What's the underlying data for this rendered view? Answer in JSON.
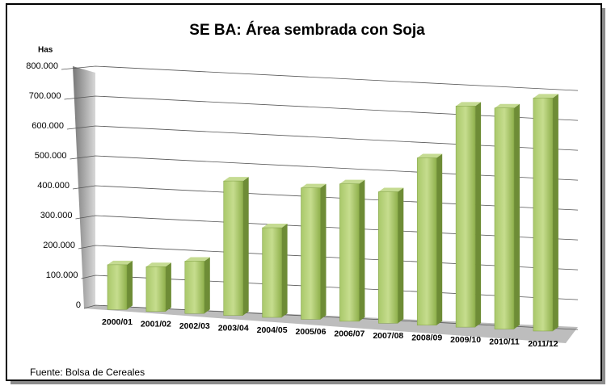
{
  "chart_data": {
    "type": "bar3d",
    "title": "SE BA: Área sembrada con Soja",
    "y_axis_label": "Has",
    "annotation": "Fuente: Bolsa de Cereales",
    "categories": [
      "2000/01",
      "2001/02",
      "2002/03",
      "2003/04",
      "2004/05",
      "2005/06",
      "2006/07",
      "2007/08",
      "2008/09",
      "2009/10",
      "2010/11",
      "2011/12"
    ],
    "values": [
      150000,
      150000,
      175000,
      450000,
      300000,
      440000,
      460000,
      440000,
      560000,
      740000,
      740000,
      780000
    ],
    "color": "#9bbb59",
    "ylim": [
      0,
      800000
    ],
    "yticks": [
      0,
      {
        "value": 100000,
        "label": "100.000"
      },
      {
        "value": 200000,
        "label": "200.000"
      },
      {
        "value": 300000,
        "label": "300.000"
      },
      {
        "value": 400000,
        "label": "400.000"
      },
      {
        "value": 500000,
        "label": "500.000"
      },
      {
        "value": 600000,
        "label": "600.000"
      },
      {
        "value": 700000,
        "label": "700.000"
      },
      {
        "value": 800000,
        "label": "800.000"
      }
    ],
    "grid": true
  }
}
